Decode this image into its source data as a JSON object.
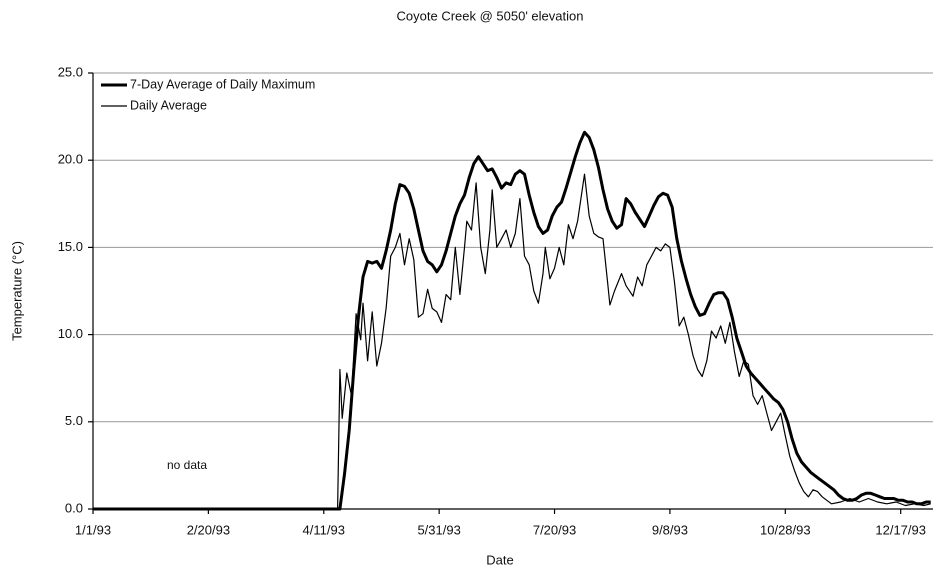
{
  "chart_data": {
    "type": "line",
    "title": "Coyote Creek @ 5050' elevation",
    "xlabel": "Date",
    "ylabel": "Temperature (°C)",
    "annotation": "no data",
    "xlim": [
      "1/1/93",
      "12/31/93"
    ],
    "xticks": [
      "1/1/93",
      "2/20/93",
      "4/11/93",
      "5/31/93",
      "7/20/93",
      "9/8/93",
      "10/28/93",
      "12/17/93"
    ],
    "ylim": [
      0,
      25
    ],
    "yticks": [
      {
        "value": 0,
        "label": "0.0"
      },
      {
        "value": 5,
        "label": "5.0"
      },
      {
        "value": 10,
        "label": "10.0"
      },
      {
        "value": 15,
        "label": "15.0"
      },
      {
        "value": 20,
        "label": "20.0"
      },
      {
        "value": 25,
        "label": "25.0"
      }
    ],
    "grid": true,
    "legend": "top-left",
    "series": [
      {
        "name": "7-Day Average of Daily Maximum",
        "color": "#000000",
        "width": 3,
        "x": [
          "1/1/93",
          "4/17/93",
          "4/18/93",
          "4/20/93",
          "4/22/93",
          "4/24/93",
          "4/26/93",
          "4/28/93",
          "4/30/93",
          "5/2/93",
          "5/4/93",
          "5/6/93",
          "5/8/93",
          "5/10/93",
          "5/12/93",
          "5/14/93",
          "5/16/93",
          "5/18/93",
          "5/20/93",
          "5/22/93",
          "5/24/93",
          "5/26/93",
          "5/28/93",
          "5/30/93",
          "6/1/93",
          "6/3/93",
          "6/5/93",
          "6/7/93",
          "6/9/93",
          "6/11/93",
          "6/13/93",
          "6/15/93",
          "6/17/93",
          "6/19/93",
          "6/21/93",
          "6/23/93",
          "6/25/93",
          "6/27/93",
          "6/29/93",
          "7/1/93",
          "7/3/93",
          "7/5/93",
          "7/7/93",
          "7/9/93",
          "7/11/93",
          "7/13/93",
          "7/15/93",
          "7/17/93",
          "7/19/93",
          "7/21/93",
          "7/23/93",
          "7/25/93",
          "7/27/93",
          "7/29/93",
          "7/31/93",
          "8/2/93",
          "8/4/93",
          "8/6/93",
          "8/8/93",
          "8/10/93",
          "8/12/93",
          "8/14/93",
          "8/16/93",
          "8/18/93",
          "8/20/93",
          "8/22/93",
          "8/24/93",
          "8/26/93",
          "8/28/93",
          "8/30/93",
          "9/1/93",
          "9/3/93",
          "9/5/93",
          "9/7/93",
          "9/9/93",
          "9/11/93",
          "9/13/93",
          "9/15/93",
          "9/17/93",
          "9/19/93",
          "9/21/93",
          "9/23/93",
          "9/25/93",
          "9/27/93",
          "9/29/93",
          "10/1/93",
          "10/3/93",
          "10/5/93",
          "10/7/93",
          "10/9/93",
          "10/11/93",
          "10/13/93",
          "10/15/93",
          "10/17/93",
          "10/19/93",
          "10/21/93",
          "10/23/93",
          "10/25/93",
          "10/27/93",
          "10/29/93",
          "10/31/93",
          "11/2/93",
          "11/4/93",
          "11/6/93",
          "11/8/93",
          "11/10/93",
          "11/12/93",
          "11/14/93",
          "11/16/93",
          "11/18/93",
          "11/20/93",
          "11/22/93",
          "11/24/93",
          "11/26/93",
          "11/28/93",
          "11/30/93",
          "12/2/93",
          "12/4/93",
          "12/6/93",
          "12/8/93",
          "12/10/93",
          "12/12/93",
          "12/14/93",
          "12/16/93",
          "12/18/93",
          "12/20/93",
          "12/22/93",
          "12/24/93",
          "12/26/93",
          "12/28/93",
          "12/30/93"
        ],
        "values": [
          0,
          0,
          0,
          2,
          4.5,
          8,
          11,
          13.3,
          14.2,
          14.1,
          14.2,
          13.8,
          14.8,
          16,
          17.5,
          18.6,
          18.5,
          18.1,
          17.2,
          16,
          14.8,
          14.2,
          14,
          13.6,
          14,
          14.8,
          15.8,
          16.8,
          17.5,
          18,
          19,
          19.8,
          20.2,
          19.8,
          19.4,
          19.5,
          19,
          18.4,
          18.7,
          18.6,
          19.2,
          19.4,
          19.2,
          18,
          17,
          16.2,
          15.8,
          16,
          16.8,
          17.3,
          17.6,
          18.4,
          19.3,
          20.2,
          21,
          21.6,
          21.3,
          20.6,
          19.6,
          18.3,
          17.2,
          16.5,
          16.1,
          16.3,
          17.8,
          17.5,
          17,
          16.6,
          16.2,
          16.8,
          17.4,
          17.9,
          18.1,
          18,
          17.3,
          15.5,
          14.2,
          13.2,
          12.3,
          11.6,
          11.1,
          11.2,
          11.8,
          12.3,
          12.4,
          12.4,
          12,
          11,
          9.8,
          9,
          8.2,
          7.8,
          7.5,
          7.2,
          6.9,
          6.6,
          6.3,
          6.1,
          5.7,
          5,
          4,
          3.2,
          2.7,
          2.4,
          2.1,
          1.9,
          1.7,
          1.5,
          1.3,
          1.1,
          0.8,
          0.6,
          0.5,
          0.5,
          0.6,
          0.8,
          0.9,
          0.9,
          0.8,
          0.7,
          0.6,
          0.6,
          0.6,
          0.5,
          0.5,
          0.4,
          0.4,
          0.3,
          0.3,
          0.4,
          0.4
        ]
      },
      {
        "name": "Daily Average",
        "color": "#000000",
        "width": 1.2,
        "x": [
          "1/1/93",
          "4/17/93",
          "4/18/93",
          "4/19/93",
          "4/21/93",
          "4/23/93",
          "4/25/93",
          "4/27/93",
          "4/28/93",
          "4/30/93",
          "5/2/93",
          "5/4/93",
          "5/6/93",
          "5/8/93",
          "5/10/93",
          "5/12/93",
          "5/14/93",
          "5/16/93",
          "5/18/93",
          "5/20/93",
          "5/22/93",
          "5/24/93",
          "5/26/93",
          "5/28/93",
          "5/30/93",
          "6/1/93",
          "6/3/93",
          "6/5/93",
          "6/7/93",
          "6/9/93",
          "6/11/93",
          "6/12/93",
          "6/14/93",
          "6/16/93",
          "6/18/93",
          "6/20/93",
          "6/22/93",
          "6/23/93",
          "6/25/93",
          "6/27/93",
          "6/29/93",
          "7/1/93",
          "7/3/93",
          "7/5/93",
          "7/7/93",
          "7/9/93",
          "7/11/93",
          "7/13/93",
          "7/15/93",
          "7/16/93",
          "7/18/93",
          "7/20/93",
          "7/22/93",
          "7/24/93",
          "7/26/93",
          "7/28/93",
          "7/30/93",
          "8/2/93",
          "8/4/93",
          "8/6/93",
          "8/8/93",
          "8/10/93",
          "8/12/93",
          "8/13/93",
          "8/15/93",
          "8/18/93",
          "8/20/93",
          "8/23/93",
          "8/25/93",
          "8/27/93",
          "8/29/93",
          "8/31/93",
          "9/2/93",
          "9/4/93",
          "9/6/93",
          "9/8/93",
          "9/10/93",
          "9/12/93",
          "9/14/93",
          "9/16/93",
          "9/18/93",
          "9/20/93",
          "9/22/93",
          "9/24/93",
          "9/26/93",
          "9/28/93",
          "9/30/93",
          "10/2/93",
          "10/4/93",
          "10/6/93",
          "10/8/93",
          "10/10/93",
          "10/12/93",
          "10/14/93",
          "10/16/93",
          "10/18/93",
          "10/20/93",
          "10/22/93",
          "10/24/93",
          "10/26/93",
          "10/28/93",
          "10/30/93",
          "11/1/93",
          "11/3/93",
          "11/5/93",
          "11/7/93",
          "11/9/93",
          "11/11/93",
          "11/13/93",
          "11/15/93",
          "11/17/93",
          "11/21/93",
          "11/25/93",
          "11/29/93",
          "12/3/93",
          "12/7/93",
          "12/11/93",
          "12/15/93",
          "12/19/93",
          "12/23/93",
          "12/27/93",
          "12/30/93"
        ],
        "values": [
          0,
          0,
          8,
          5.2,
          7.8,
          6.5,
          11.2,
          9.7,
          11.8,
          8.5,
          11.3,
          8.2,
          9.5,
          11.5,
          14.5,
          15,
          15.8,
          14,
          15.5,
          14.3,
          11,
          11.2,
          12.6,
          11.5,
          11.3,
          10.7,
          12.3,
          12,
          15,
          12.3,
          15,
          16.5,
          16,
          18.7,
          15,
          13.5,
          16,
          18.3,
          15,
          15.5,
          16,
          15,
          15.8,
          17.8,
          14.5,
          14,
          12.5,
          11.8,
          13.5,
          15,
          13.2,
          13.8,
          15,
          14,
          16.3,
          15.5,
          16.5,
          19.2,
          16.8,
          15.8,
          15.6,
          15.5,
          13,
          11.7,
          12.5,
          13.5,
          12.8,
          12.2,
          13.3,
          12.8,
          14,
          14.5,
          15,
          14.8,
          15.2,
          15,
          13,
          10.5,
          11,
          10,
          8.8,
          8,
          7.6,
          8.5,
          10.2,
          9.8,
          10.5,
          9.5,
          10.7,
          9,
          7.6,
          8.5,
          8.3,
          6.5,
          6,
          6.5,
          5.5,
          4.5,
          5,
          5.5,
          4.2,
          3,
          2.2,
          1.5,
          1,
          0.7,
          1.1,
          1,
          0.7,
          0.5,
          0.3,
          0.4,
          0.6,
          0.4,
          0.6,
          0.4,
          0.3,
          0.4,
          0.2,
          0.3,
          0.2,
          0.3
        ]
      }
    ]
  }
}
